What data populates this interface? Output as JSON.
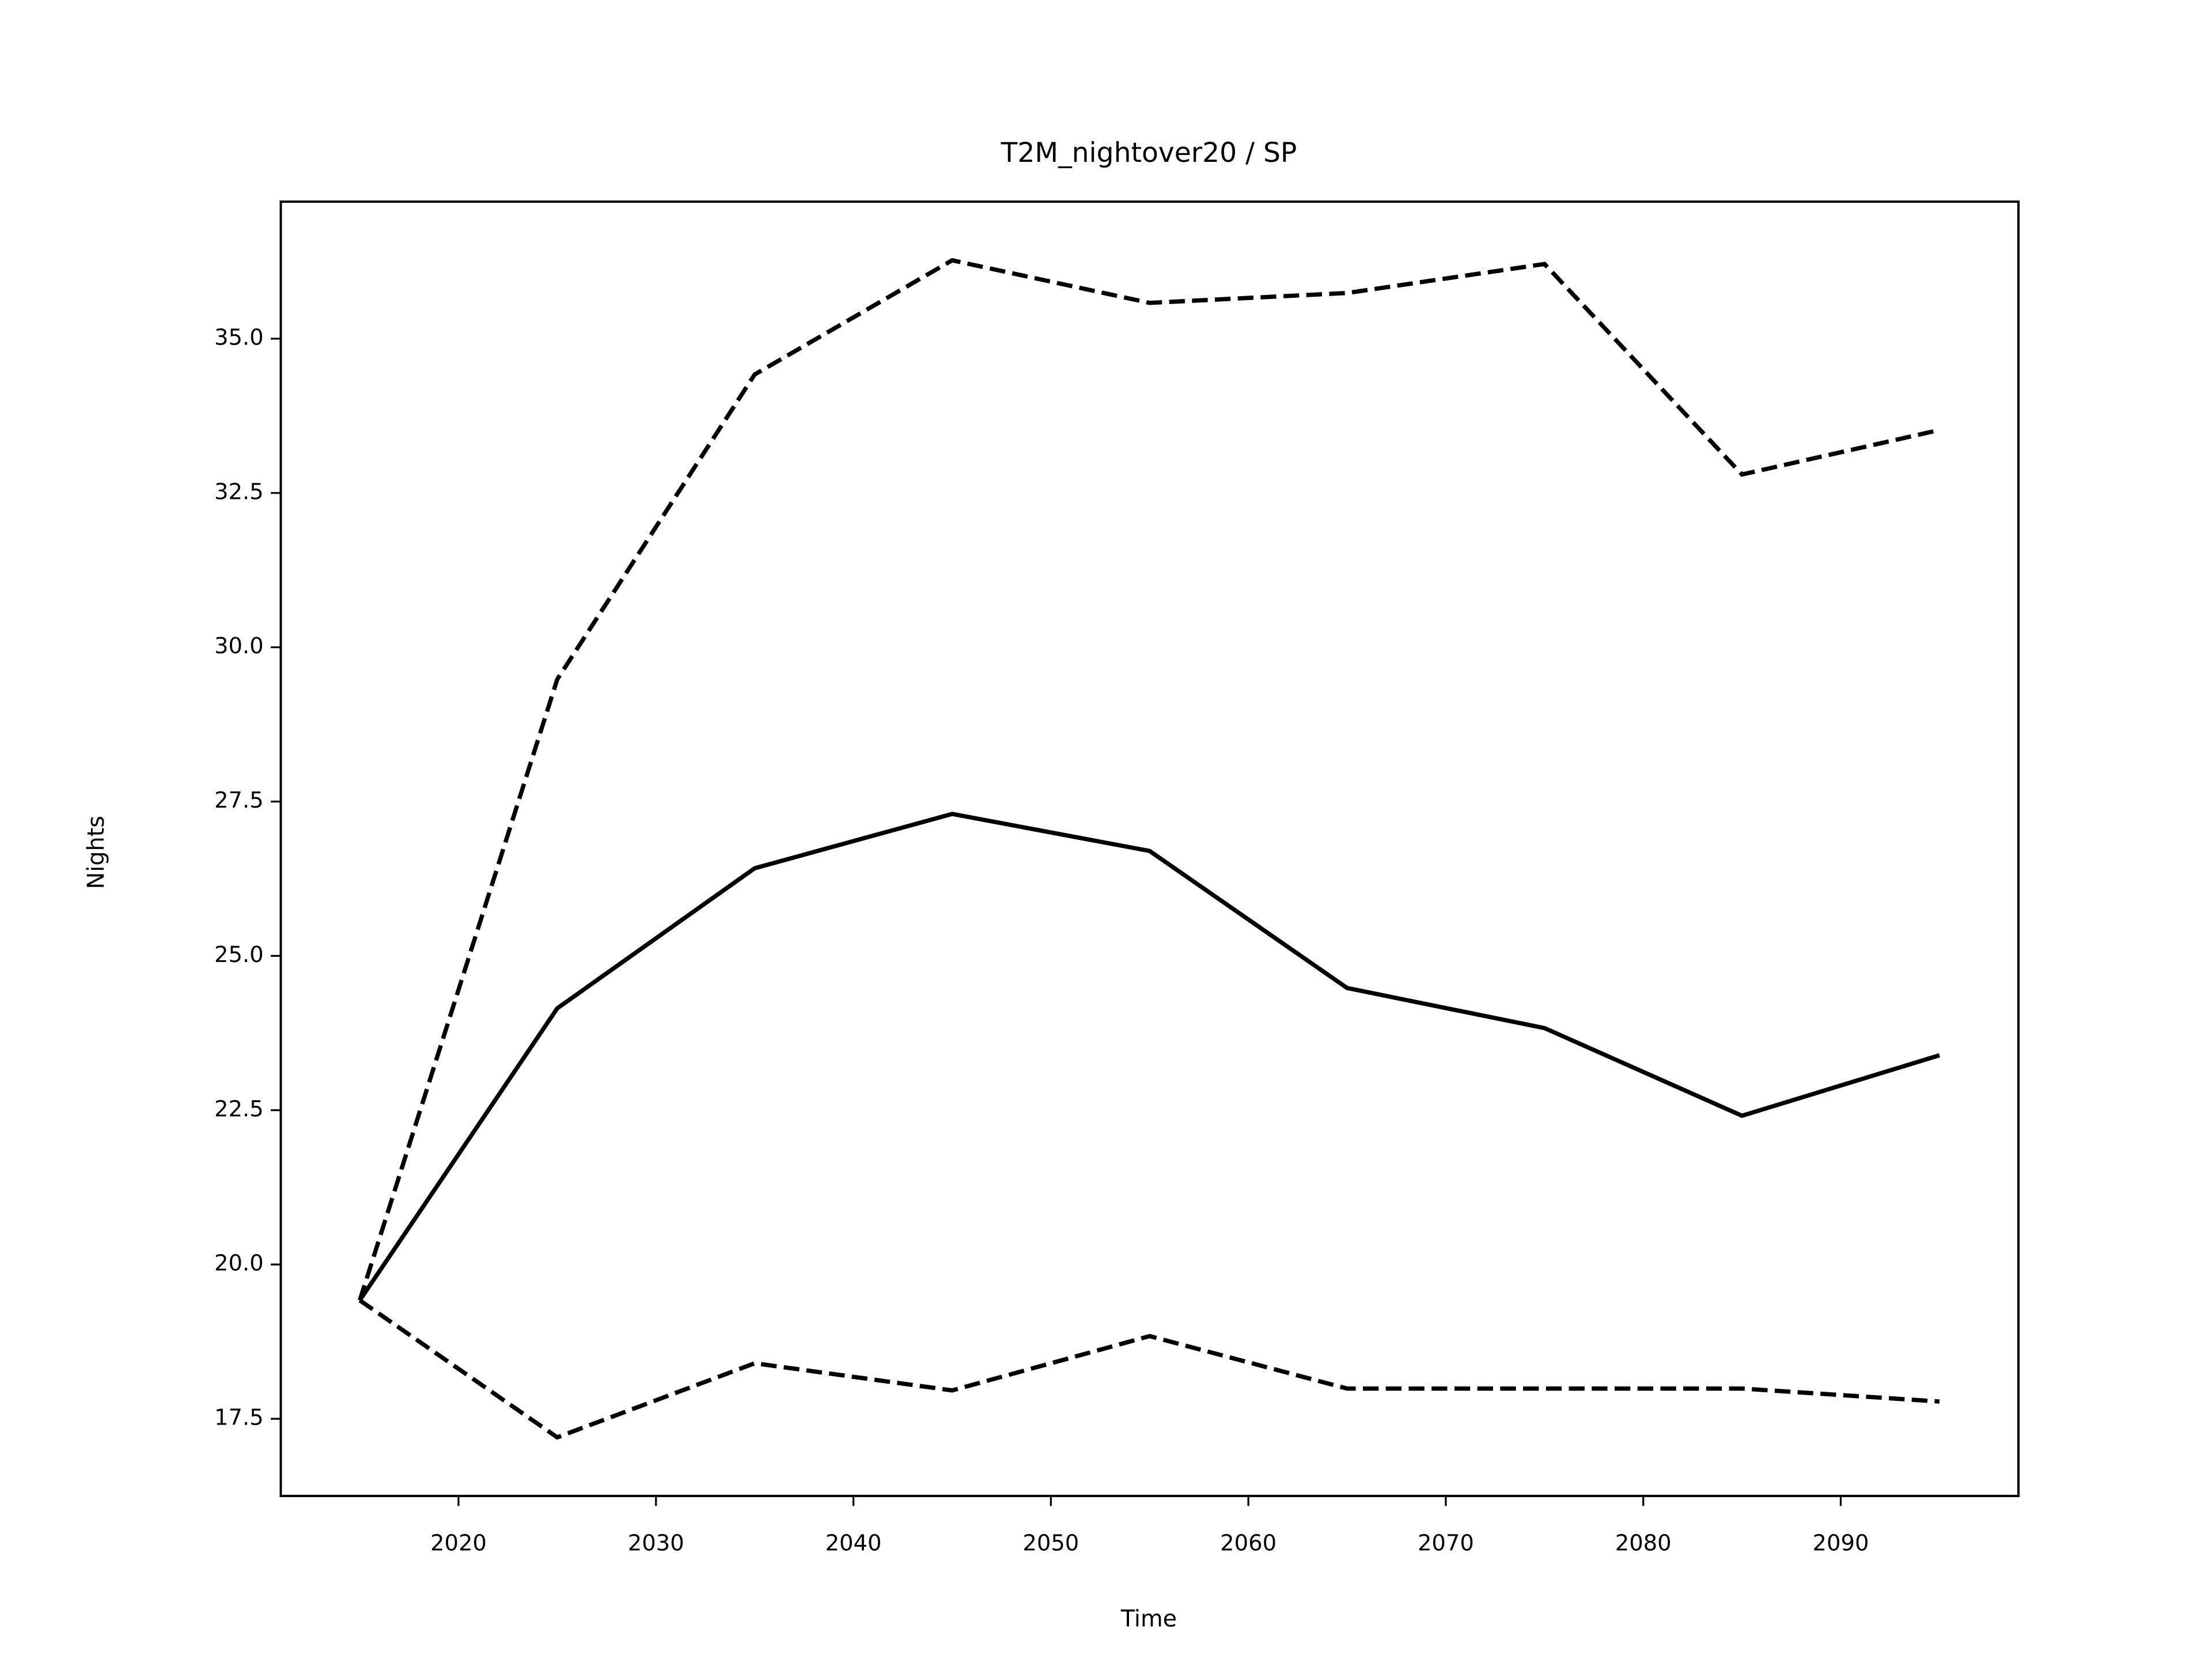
{
  "chart_data": {
    "type": "line",
    "title": "T2M_nightover20 / SP",
    "x_label": "Time",
    "y_label": "Nights",
    "x": [
      2015,
      2025,
      2035,
      2045,
      2055,
      2065,
      2075,
      2085,
      2095
    ],
    "series": [
      {
        "color": "#000000",
        "dashed": false,
        "values": [
          19.42,
          24.15,
          26.42,
          27.3,
          26.7,
          24.48,
          23.83,
          22.41,
          23.39
        ]
      },
      {
        "color": "#000000",
        "dashed": true,
        "values": [
          19.42,
          29.48,
          34.42,
          36.27,
          35.58,
          35.74,
          36.21,
          32.8,
          33.52
        ]
      },
      {
        "color": "#000000",
        "dashed": true,
        "values": [
          19.42,
          17.2,
          18.4,
          17.96,
          18.84,
          17.99,
          17.99,
          17.99,
          17.78
        ]
      }
    ],
    "xlim": [
      2011,
      2099
    ],
    "xticks": [
      2020,
      2030,
      2040,
      2050,
      2060,
      2070,
      2080,
      2090
    ],
    "ylim": [
      16.25,
      37.22
    ],
    "yticks": [
      {
        "value": 17.5,
        "label": "17.5"
      },
      {
        "value": 20,
        "label": "20.0"
      },
      {
        "value": 22.5,
        "label": "22.5"
      },
      {
        "value": 25,
        "label": "25.0"
      },
      {
        "value": 27.5,
        "label": "27.5"
      },
      {
        "value": 30,
        "label": "30.0"
      },
      {
        "value": 32.5,
        "label": "32.5"
      },
      {
        "value": 35,
        "label": "35.0"
      }
    ],
    "grid": false
  }
}
